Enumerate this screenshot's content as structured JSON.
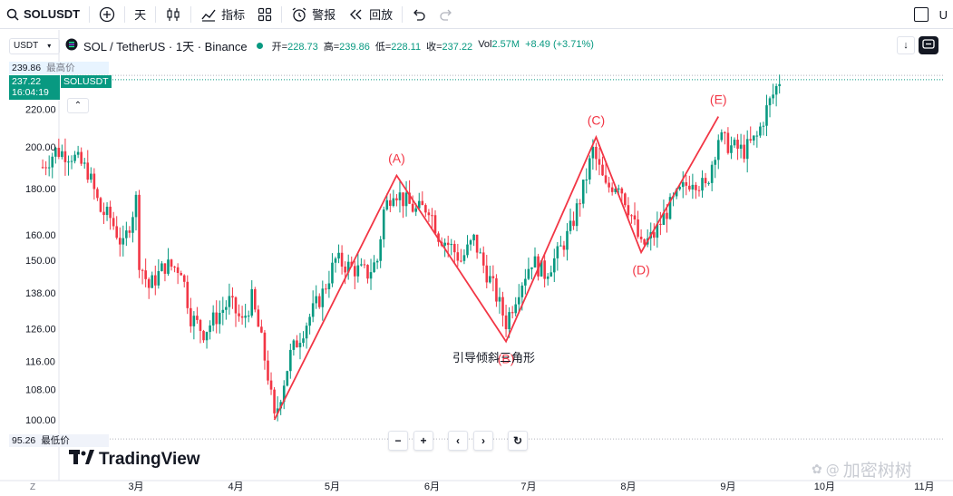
{
  "toolbar": {
    "symbol": "SOLUSDT",
    "interval": "天",
    "indicators_label": "指标",
    "alert_label": "警报",
    "replay_label": "回放",
    "right_label": "U"
  },
  "legend": {
    "currency": "USDT",
    "title": "SOL / TetherUS · 1天 · Binance",
    "open_k": "开=",
    "open_v": "228.73",
    "high_k": "高=",
    "high_v": "239.86",
    "low_k": "低=",
    "low_v": "228.11",
    "close_k": "收=",
    "close_v": "237.22",
    "vol_k": "Vol",
    "vol_v": "2.57M",
    "change": "+8.49 (+3.71%)"
  },
  "price_tags": {
    "high_value": "239.86",
    "high_label": "最高价",
    "current_value": "237.22",
    "current_symbol": "SOLUSDT",
    "countdown": "16:04:19",
    "low_value": "95.26",
    "low_label": "最低价"
  },
  "annotation_text": "引导倾斜三角形",
  "brand": "TradingView",
  "watermark": "加密树树",
  "nav": {
    "minus": "−",
    "plus": "+",
    "left": "‹",
    "right": "›",
    "reset": "↻"
  },
  "colors": {
    "up": "#089981",
    "down": "#f23645",
    "wave": "#f23645",
    "annotation": "#2962ff"
  },
  "chart_data": {
    "type": "candlestick",
    "y_ticks": [
      100,
      108,
      116,
      126,
      138,
      150,
      160,
      180,
      200,
      220
    ],
    "y_tick_labels": [
      "100.00",
      "108.00",
      "116.00",
      "126.00",
      "138.00",
      "150.00",
      "160.00",
      "180.00",
      "200.00",
      "220.00"
    ],
    "y_scale": "log",
    "x_ticks": [
      "3月",
      "4月",
      "5月",
      "6月",
      "7月",
      "8月",
      "9月",
      "10月",
      "11月"
    ],
    "wave_points": [
      {
        "label": "",
        "date": "2024-04-13",
        "price": 100
      },
      {
        "label": "(A)",
        "date": "2024-05-21",
        "price": 186
      },
      {
        "label": "(B)",
        "date": "2024-06-24",
        "price": 122
      },
      {
        "label": "(C)",
        "date": "2024-07-22",
        "price": 205
      },
      {
        "label": "(D)",
        "date": "2024-08-05",
        "price": 153
      },
      {
        "label": "(E)",
        "date": "2024-08-29",
        "price": 216
      }
    ],
    "price_path": [
      {
        "date": "2024-02-01",
        "price": 190
      },
      {
        "date": "2024-02-05",
        "price": 198
      },
      {
        "date": "2024-02-10",
        "price": 196
      },
      {
        "date": "2024-02-15",
        "price": 188
      },
      {
        "date": "2024-02-19",
        "price": 170
      },
      {
        "date": "2024-02-22",
        "price": 167
      },
      {
        "date": "2024-02-26",
        "price": 155
      },
      {
        "date": "2024-03-01",
        "price": 175
      },
      {
        "date": "2024-03-02",
        "price": 150
      },
      {
        "date": "2024-03-05",
        "price": 140
      },
      {
        "date": "2024-03-10",
        "price": 148
      },
      {
        "date": "2024-03-15",
        "price": 147
      },
      {
        "date": "2024-03-18",
        "price": 130
      },
      {
        "date": "2024-03-22",
        "price": 125
      },
      {
        "date": "2024-03-26",
        "price": 130
      },
      {
        "date": "2024-03-30",
        "price": 135
      },
      {
        "date": "2024-04-03",
        "price": 128
      },
      {
        "date": "2024-04-06",
        "price": 136
      },
      {
        "date": "2024-04-09",
        "price": 122
      },
      {
        "date": "2024-04-11",
        "price": 112
      },
      {
        "date": "2024-04-13",
        "price": 100
      },
      {
        "date": "2024-04-18",
        "price": 118
      },
      {
        "date": "2024-04-23",
        "price": 128
      },
      {
        "date": "2024-04-28",
        "price": 138
      },
      {
        "date": "2024-05-02",
        "price": 150
      },
      {
        "date": "2024-05-07",
        "price": 147
      },
      {
        "date": "2024-05-12",
        "price": 145
      },
      {
        "date": "2024-05-15",
        "price": 150
      },
      {
        "date": "2024-05-17",
        "price": 170
      },
      {
        "date": "2024-05-20",
        "price": 180
      },
      {
        "date": "2024-05-23",
        "price": 175
      },
      {
        "date": "2024-05-27",
        "price": 170
      },
      {
        "date": "2024-05-31",
        "price": 172
      },
      {
        "date": "2024-06-03",
        "price": 160
      },
      {
        "date": "2024-06-07",
        "price": 155
      },
      {
        "date": "2024-06-10",
        "price": 150
      },
      {
        "date": "2024-06-14",
        "price": 158
      },
      {
        "date": "2024-06-17",
        "price": 148
      },
      {
        "date": "2024-06-20",
        "price": 140
      },
      {
        "date": "2024-06-24",
        "price": 128
      },
      {
        "date": "2024-06-28",
        "price": 140
      },
      {
        "date": "2024-07-02",
        "price": 150
      },
      {
        "date": "2024-07-06",
        "price": 145
      },
      {
        "date": "2024-07-10",
        "price": 152
      },
      {
        "date": "2024-07-14",
        "price": 162
      },
      {
        "date": "2024-07-18",
        "price": 180
      },
      {
        "date": "2024-07-21",
        "price": 198
      },
      {
        "date": "2024-07-25",
        "price": 180
      },
      {
        "date": "2024-07-29",
        "price": 183
      },
      {
        "date": "2024-08-02",
        "price": 168
      },
      {
        "date": "2024-08-05",
        "price": 155
      },
      {
        "date": "2024-08-09",
        "price": 160
      },
      {
        "date": "2024-08-13",
        "price": 170
      },
      {
        "date": "2024-08-17",
        "price": 178
      },
      {
        "date": "2024-08-21",
        "price": 185
      },
      {
        "date": "2024-08-25",
        "price": 180
      },
      {
        "date": "2024-08-29",
        "price": 205
      },
      {
        "date": "2024-09-02",
        "price": 200
      },
      {
        "date": "2024-09-06",
        "price": 198
      },
      {
        "date": "2024-09-10",
        "price": 205
      },
      {
        "date": "2024-09-13",
        "price": 220
      },
      {
        "date": "2024-09-17",
        "price": 237
      }
    ]
  }
}
